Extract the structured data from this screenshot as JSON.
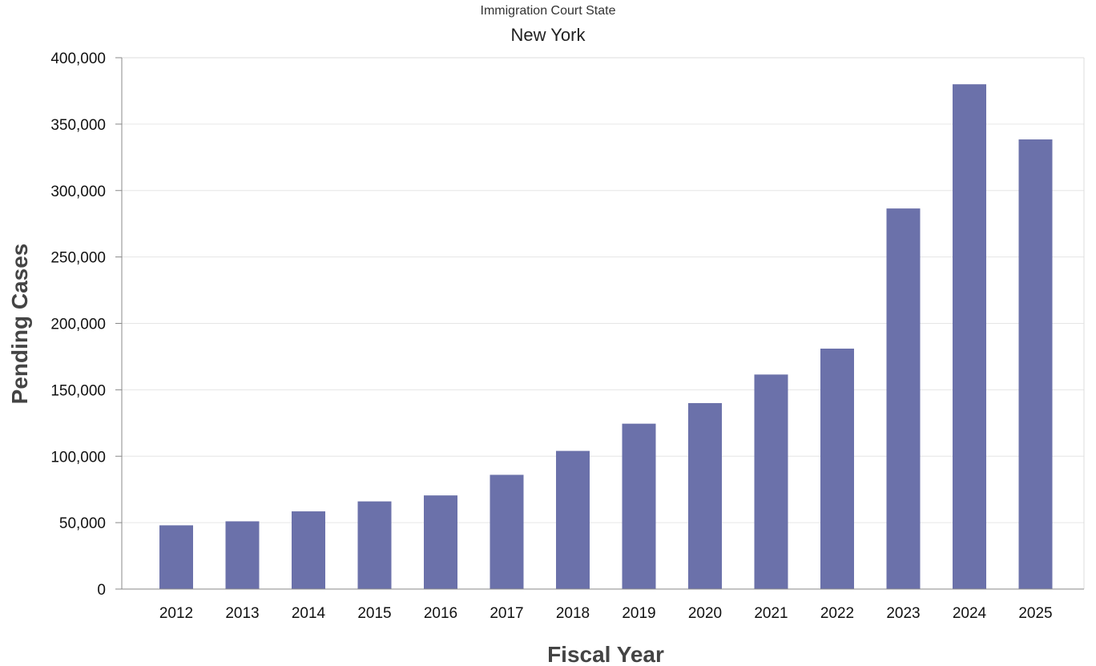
{
  "chart_data": {
    "type": "bar",
    "subtitle": "Immigration Court State",
    "title": "New York",
    "xlabel": "Fiscal Year",
    "ylabel": "Pending Cases",
    "categories": [
      "2012",
      "2013",
      "2014",
      "2015",
      "2016",
      "2017",
      "2018",
      "2019",
      "2020",
      "2021",
      "2022",
      "2023",
      "2024",
      "2025"
    ],
    "values": [
      48000,
      51000,
      58500,
      66000,
      70500,
      86000,
      104000,
      124500,
      140000,
      161500,
      181000,
      286500,
      380000,
      338500
    ],
    "ylim": [
      0,
      400000
    ],
    "yticks": [
      0,
      50000,
      100000,
      150000,
      200000,
      250000,
      300000,
      350000,
      400000
    ],
    "ytick_labels": [
      "0",
      "50,000",
      "100,000",
      "150,000",
      "200,000",
      "250,000",
      "300,000",
      "350,000",
      "400,000"
    ],
    "grid": true,
    "legend": "none",
    "colors": {
      "bar": "#6b71aa",
      "grid": "#e6e6e6",
      "axis": "#888888"
    }
  }
}
